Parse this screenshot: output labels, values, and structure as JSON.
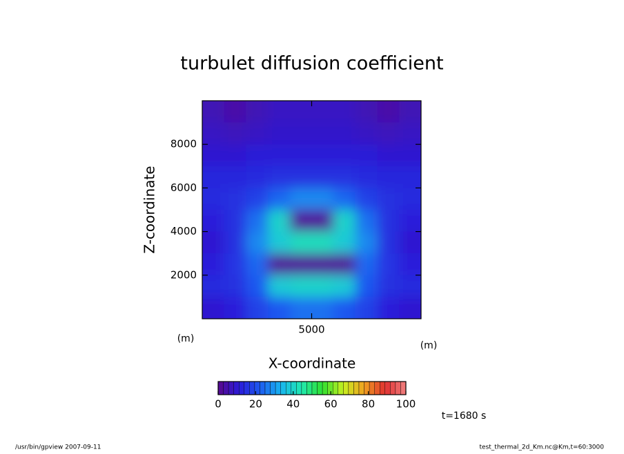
{
  "chart_data": {
    "type": "heatmap",
    "title": "turbulet diffusion coefficient",
    "x_label": "X-coordinate",
    "y_label": "Z-coordinate",
    "x_unit": "(m)",
    "y_unit": "(m)",
    "x": [
      500,
      1500,
      2500,
      3500,
      4500,
      5500,
      6500,
      7500,
      8500,
      9500
    ],
    "y": [
      9500,
      8500,
      7500,
      6500,
      5500,
      4500,
      3500,
      2500,
      1500,
      500
    ],
    "z": [
      [
        6,
        4,
        6,
        8,
        8,
        8,
        8,
        6,
        4,
        6
      ],
      [
        8,
        7,
        8,
        9,
        9,
        9,
        9,
        8,
        7,
        8
      ],
      [
        10,
        10,
        11,
        11,
        11,
        11,
        11,
        11,
        10,
        10
      ],
      [
        13,
        13,
        14,
        15,
        15,
        15,
        15,
        14,
        13,
        13
      ],
      [
        14,
        15,
        18,
        24,
        28,
        28,
        24,
        18,
        15,
        14
      ],
      [
        12,
        15,
        25,
        40,
        2,
        2,
        40,
        25,
        15,
        12
      ],
      [
        10,
        15,
        28,
        38,
        42,
        42,
        38,
        28,
        15,
        10
      ],
      [
        12,
        16,
        24,
        2,
        2,
        2,
        2,
        24,
        16,
        12
      ],
      [
        14,
        15,
        22,
        38,
        40,
        40,
        38,
        22,
        15,
        14
      ],
      [
        10,
        12,
        18,
        22,
        25,
        25,
        22,
        18,
        12,
        10
      ]
    ],
    "xlim": [
      0,
      10000
    ],
    "ylim": [
      0,
      10000
    ],
    "xticks": [
      5000
    ],
    "yticks": [
      2000,
      4000,
      6000,
      8000
    ],
    "colorbar": {
      "range": [
        0,
        100
      ],
      "ticks": [
        0,
        20,
        40,
        60,
        80,
        100
      ],
      "colors": [
        "#5a0a8c",
        "#2a1ad8",
        "#1e5af0",
        "#18b4f0",
        "#20e8b0",
        "#30e030",
        "#c8f020",
        "#f0a020",
        "#e03030",
        "#f08080"
      ]
    },
    "time_label": "t=1680 s",
    "footer_left": "/usr/bin/gpview  2007-09-11",
    "footer_right": "test_thermal_2d_Km.nc@Km,t=60:3000"
  }
}
